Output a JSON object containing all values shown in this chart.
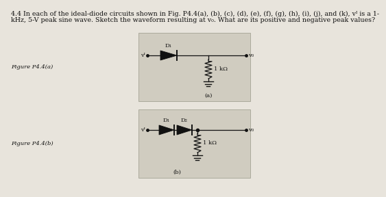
{
  "title_line1": "4.4 In each of the ideal-diode circuits shown in Fig. P4.4(a), (b), (c), (d), (e), (f), (g), (h), (i), (j), and (k), vᴵ is a 1-",
  "title_line2": "kHz, 5-V peak sine wave. Sketch the waveform resulting at v₀. What are its positive and negative peak values?",
  "fig_a_label": "Figure P4.4(a)",
  "fig_b_label": "Figure P4.4(b)",
  "sub_a": "(a)",
  "sub_b": "(b)",
  "D1_label_a": "D₁",
  "D1_label_b": "D₁",
  "D2_label_b": "D₂",
  "resistor_label": "1 kΩ",
  "vi_label": "vᴵ",
  "vo_label": "v₀",
  "page_bg": "#e8e4dc",
  "box_bg": "#d0ccc0",
  "line_color": "#111111",
  "text_color": "#111111",
  "font_size_title": 6.8,
  "font_size_body": 6.5,
  "font_size_sub": 6.0
}
